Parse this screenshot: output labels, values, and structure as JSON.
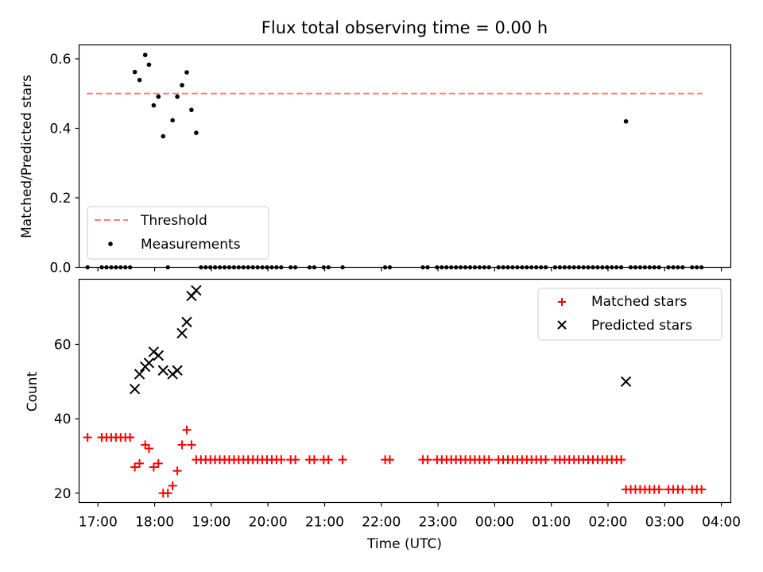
{
  "figure": {
    "title": "Flux total observing time = 0.00 h",
    "xlabel": "Time (UTC)",
    "x_ticks": [
      "17:00",
      "18:00",
      "19:00",
      "20:00",
      "21:00",
      "22:00",
      "23:00",
      "00:00",
      "01:00",
      "02:00",
      "03:00",
      "04:00"
    ]
  },
  "chart_data": [
    {
      "type": "scatter",
      "panel": "top",
      "ylabel": "Matched/Predicted stars",
      "x_range": [
        "16:40",
        "04:10"
      ],
      "ylim": [
        0,
        0.64
      ],
      "y_ticks": [
        "0.0",
        "0.2",
        "0.4",
        "0.6"
      ],
      "threshold": {
        "name": "Threshold",
        "value": 0.5,
        "x": [
          "16:48",
          "03:40"
        ],
        "color": "#ff7f7f",
        "style": "dashed"
      },
      "series": [
        {
          "name": "Measurements",
          "color": "#000000",
          "marker": "dot",
          "points": [
            [
              "17:39",
              0.562
            ],
            [
              "17:44",
              0.539
            ],
            [
              "17:50",
              0.611
            ],
            [
              "17:54",
              0.583
            ],
            [
              "17:59",
              0.466
            ],
            [
              "18:04",
              0.491
            ],
            [
              "18:09",
              0.377
            ],
            [
              "18:19",
              0.423
            ],
            [
              "18:24",
              0.491
            ],
            [
              "18:29",
              0.524
            ],
            [
              "18:34",
              0.561
            ],
            [
              "18:39",
              0.453
            ],
            [
              "18:44",
              0.387
            ],
            [
              "02:19",
              0.42
            ]
          ],
          "zero_points": [
            "16:49",
            "17:04",
            "17:09",
            "17:14",
            "17:19",
            "17:24",
            "17:29",
            "17:34",
            "18:14",
            "18:49",
            "18:54",
            "18:59",
            "19:04",
            "19:09",
            "19:14",
            "19:19",
            "19:24",
            "19:29",
            "19:34",
            "19:39",
            "19:44",
            "19:49",
            "19:54",
            "19:59",
            "20:04",
            "20:09",
            "20:14",
            "20:24",
            "20:29",
            "20:44",
            "20:49",
            "20:59",
            "21:04",
            "21:19",
            "22:04",
            "22:09",
            "22:44",
            "22:49",
            "22:59",
            "23:04",
            "23:09",
            "23:14",
            "23:19",
            "23:24",
            "23:29",
            "23:34",
            "23:39",
            "23:44",
            "23:49",
            "23:54",
            "00:04",
            "00:09",
            "00:14",
            "00:19",
            "00:24",
            "00:29",
            "00:34",
            "00:39",
            "00:44",
            "00:49",
            "00:54",
            "01:04",
            "01:09",
            "01:14",
            "01:19",
            "01:24",
            "01:29",
            "01:34",
            "01:39",
            "01:44",
            "01:49",
            "01:54",
            "01:59",
            "02:04",
            "02:09",
            "02:14",
            "02:24",
            "02:29",
            "02:34",
            "02:39",
            "02:44",
            "02:49",
            "02:54",
            "03:04",
            "03:09",
            "03:14",
            "03:19",
            "03:29",
            "03:34",
            "03:39"
          ]
        }
      ],
      "legend": {
        "position": "lower-left"
      }
    },
    {
      "type": "scatter",
      "panel": "bottom",
      "ylabel": "Count",
      "x_range": [
        "16:40",
        "04:10"
      ],
      "ylim": [
        17.5,
        77.5
      ],
      "y_ticks": [
        "20",
        "40",
        "60"
      ],
      "series": [
        {
          "name": "Matched stars",
          "color": "#ff0000",
          "marker": "plus",
          "points": [
            [
              "16:49",
              35
            ],
            [
              "17:04",
              35
            ],
            [
              "17:09",
              35
            ],
            [
              "17:14",
              35
            ],
            [
              "17:19",
              35
            ],
            [
              "17:24",
              35
            ],
            [
              "17:29",
              35
            ],
            [
              "17:34",
              35
            ],
            [
              "17:39",
              27
            ],
            [
              "17:44",
              28
            ],
            [
              "17:50",
              33
            ],
            [
              "17:54",
              32
            ],
            [
              "17:59",
              27
            ],
            [
              "18:04",
              28
            ],
            [
              "18:09",
              20
            ],
            [
              "18:14",
              20
            ],
            [
              "18:19",
              22
            ],
            [
              "18:24",
              26
            ],
            [
              "18:29",
              33
            ],
            [
              "18:34",
              37
            ],
            [
              "18:39",
              33
            ],
            [
              "18:44",
              29
            ],
            [
              "18:49",
              29
            ],
            [
              "18:54",
              29
            ],
            [
              "18:59",
              29
            ],
            [
              "19:04",
              29
            ],
            [
              "19:09",
              29
            ],
            [
              "19:14",
              29
            ],
            [
              "19:19",
              29
            ],
            [
              "19:24",
              29
            ],
            [
              "19:29",
              29
            ],
            [
              "19:34",
              29
            ],
            [
              "19:39",
              29
            ],
            [
              "19:44",
              29
            ],
            [
              "19:49",
              29
            ],
            [
              "19:54",
              29
            ],
            [
              "19:59",
              29
            ],
            [
              "20:04",
              29
            ],
            [
              "20:09",
              29
            ],
            [
              "20:14",
              29
            ],
            [
              "20:24",
              29
            ],
            [
              "20:29",
              29
            ],
            [
              "20:44",
              29
            ],
            [
              "20:49",
              29
            ],
            [
              "20:59",
              29
            ],
            [
              "21:04",
              29
            ],
            [
              "21:19",
              29
            ],
            [
              "22:04",
              29
            ],
            [
              "22:09",
              29
            ],
            [
              "22:44",
              29
            ],
            [
              "22:49",
              29
            ],
            [
              "22:59",
              29
            ],
            [
              "23:04",
              29
            ],
            [
              "23:09",
              29
            ],
            [
              "23:14",
              29
            ],
            [
              "23:19",
              29
            ],
            [
              "23:24",
              29
            ],
            [
              "23:29",
              29
            ],
            [
              "23:34",
              29
            ],
            [
              "23:39",
              29
            ],
            [
              "23:44",
              29
            ],
            [
              "23:49",
              29
            ],
            [
              "23:54",
              29
            ],
            [
              "00:04",
              29
            ],
            [
              "00:09",
              29
            ],
            [
              "00:14",
              29
            ],
            [
              "00:19",
              29
            ],
            [
              "00:24",
              29
            ],
            [
              "00:29",
              29
            ],
            [
              "00:34",
              29
            ],
            [
              "00:39",
              29
            ],
            [
              "00:44",
              29
            ],
            [
              "00:49",
              29
            ],
            [
              "00:54",
              29
            ],
            [
              "01:04",
              29
            ],
            [
              "01:09",
              29
            ],
            [
              "01:14",
              29
            ],
            [
              "01:19",
              29
            ],
            [
              "01:24",
              29
            ],
            [
              "01:29",
              29
            ],
            [
              "01:34",
              29
            ],
            [
              "01:39",
              29
            ],
            [
              "01:44",
              29
            ],
            [
              "01:49",
              29
            ],
            [
              "01:54",
              29
            ],
            [
              "01:59",
              29
            ],
            [
              "02:04",
              29
            ],
            [
              "02:09",
              29
            ],
            [
              "02:14",
              29
            ],
            [
              "02:19",
              21
            ],
            [
              "02:24",
              21
            ],
            [
              "02:29",
              21
            ],
            [
              "02:34",
              21
            ],
            [
              "02:39",
              21
            ],
            [
              "02:44",
              21
            ],
            [
              "02:49",
              21
            ],
            [
              "02:54",
              21
            ],
            [
              "03:04",
              21
            ],
            [
              "03:09",
              21
            ],
            [
              "03:14",
              21
            ],
            [
              "03:19",
              21
            ],
            [
              "03:29",
              21
            ],
            [
              "03:34",
              21
            ],
            [
              "03:39",
              21
            ]
          ]
        },
        {
          "name": "Predicted stars",
          "color": "#000000",
          "marker": "x",
          "points": [
            [
              "17:39",
              48
            ],
            [
              "17:44",
              52
            ],
            [
              "17:50",
              54
            ],
            [
              "17:54",
              55
            ],
            [
              "17:59",
              58
            ],
            [
              "18:04",
              57
            ],
            [
              "18:09",
              53
            ],
            [
              "18:19",
              52
            ],
            [
              "18:24",
              53
            ],
            [
              "18:29",
              63
            ],
            [
              "18:34",
              66
            ],
            [
              "18:39",
              73
            ],
            [
              "18:44",
              74.5
            ],
            [
              "02:19",
              50
            ]
          ]
        }
      ],
      "legend": {
        "position": "upper-right"
      }
    }
  ]
}
